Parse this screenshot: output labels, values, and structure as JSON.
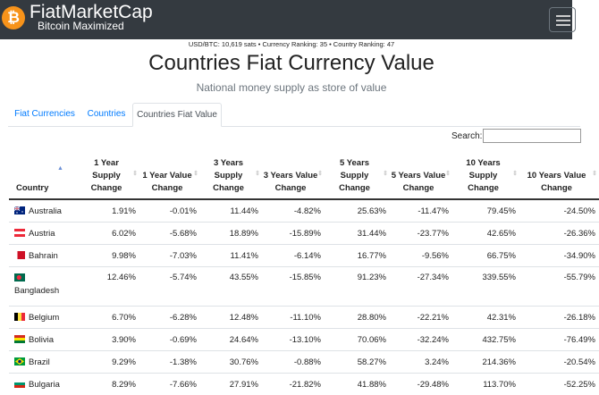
{
  "navbar": {
    "logo_symbol": "₿",
    "brand": "FiatMarketCap",
    "tagline": "Bitcoin Maximized"
  },
  "stats": "USD/BTC: 10,619 sats  •  Currency Ranking: 35  •  Country Ranking: 47",
  "page": {
    "title": "Countries Fiat Currency Value",
    "subtitle": "National money supply as store of value"
  },
  "tabs": [
    {
      "label": "Fiat Currencies",
      "active": false
    },
    {
      "label": "Countries",
      "active": false
    },
    {
      "label": "Countries Fiat Value",
      "active": true
    }
  ],
  "search": {
    "label": "Search:",
    "value": ""
  },
  "table": {
    "headers": [
      "Country",
      "1 Year Supply Change",
      "1 Year Value Change",
      "3 Years Supply Change",
      "3 Years Value Change",
      "5 Years Supply Change",
      "5 Years Value Change",
      "10 Years Supply Change",
      "10 Years Value Change"
    ],
    "rows": [
      {
        "country": "Australia",
        "flag": "australia-flag",
        "values": [
          "1.91%",
          "-0.01%",
          "11.44%",
          "-4.82%",
          "25.63%",
          "-11.47%",
          "79.45%",
          "-24.50%"
        ]
      },
      {
        "country": "Austria",
        "flag": "austria-flag",
        "values": [
          "6.02%",
          "-5.68%",
          "18.89%",
          "-15.89%",
          "31.44%",
          "-23.77%",
          "42.65%",
          "-26.36%"
        ]
      },
      {
        "country": "Bahrain",
        "flag": "bahrain-flag",
        "values": [
          "9.98%",
          "-7.03%",
          "11.41%",
          "-6.14%",
          "16.77%",
          "-9.56%",
          "66.75%",
          "-34.90%"
        ]
      },
      {
        "country": "Bangladesh",
        "flag": "bangladesh-flag",
        "values": [
          "12.46%",
          "-5.74%",
          "43.55%",
          "-15.85%",
          "91.23%",
          "-27.34%",
          "339.55%",
          "-55.79%"
        ]
      },
      {
        "country": "Belgium",
        "flag": "belgium-flag",
        "values": [
          "6.70%",
          "-6.28%",
          "12.48%",
          "-11.10%",
          "28.80%",
          "-22.21%",
          "42.31%",
          "-26.18%"
        ]
      },
      {
        "country": "Bolivia",
        "flag": "bolivia-flag",
        "values": [
          "3.90%",
          "-0.69%",
          "24.64%",
          "-13.10%",
          "70.06%",
          "-32.24%",
          "432.75%",
          "-76.49%"
        ]
      },
      {
        "country": "Brazil",
        "flag": "brazil-flag",
        "values": [
          "9.29%",
          "-1.38%",
          "30.76%",
          "-0.88%",
          "58.27%",
          "3.24%",
          "214.36%",
          "-20.54%"
        ]
      },
      {
        "country": "Bulgaria",
        "flag": "bulgaria-flag",
        "values": [
          "8.29%",
          "-7.66%",
          "27.91%",
          "-21.82%",
          "41.88%",
          "-29.48%",
          "113.70%",
          "-52.25%"
        ]
      }
    ]
  },
  "colors": {
    "navbar": "#343a40",
    "logo": "#f7931a",
    "link": "#007bff"
  }
}
